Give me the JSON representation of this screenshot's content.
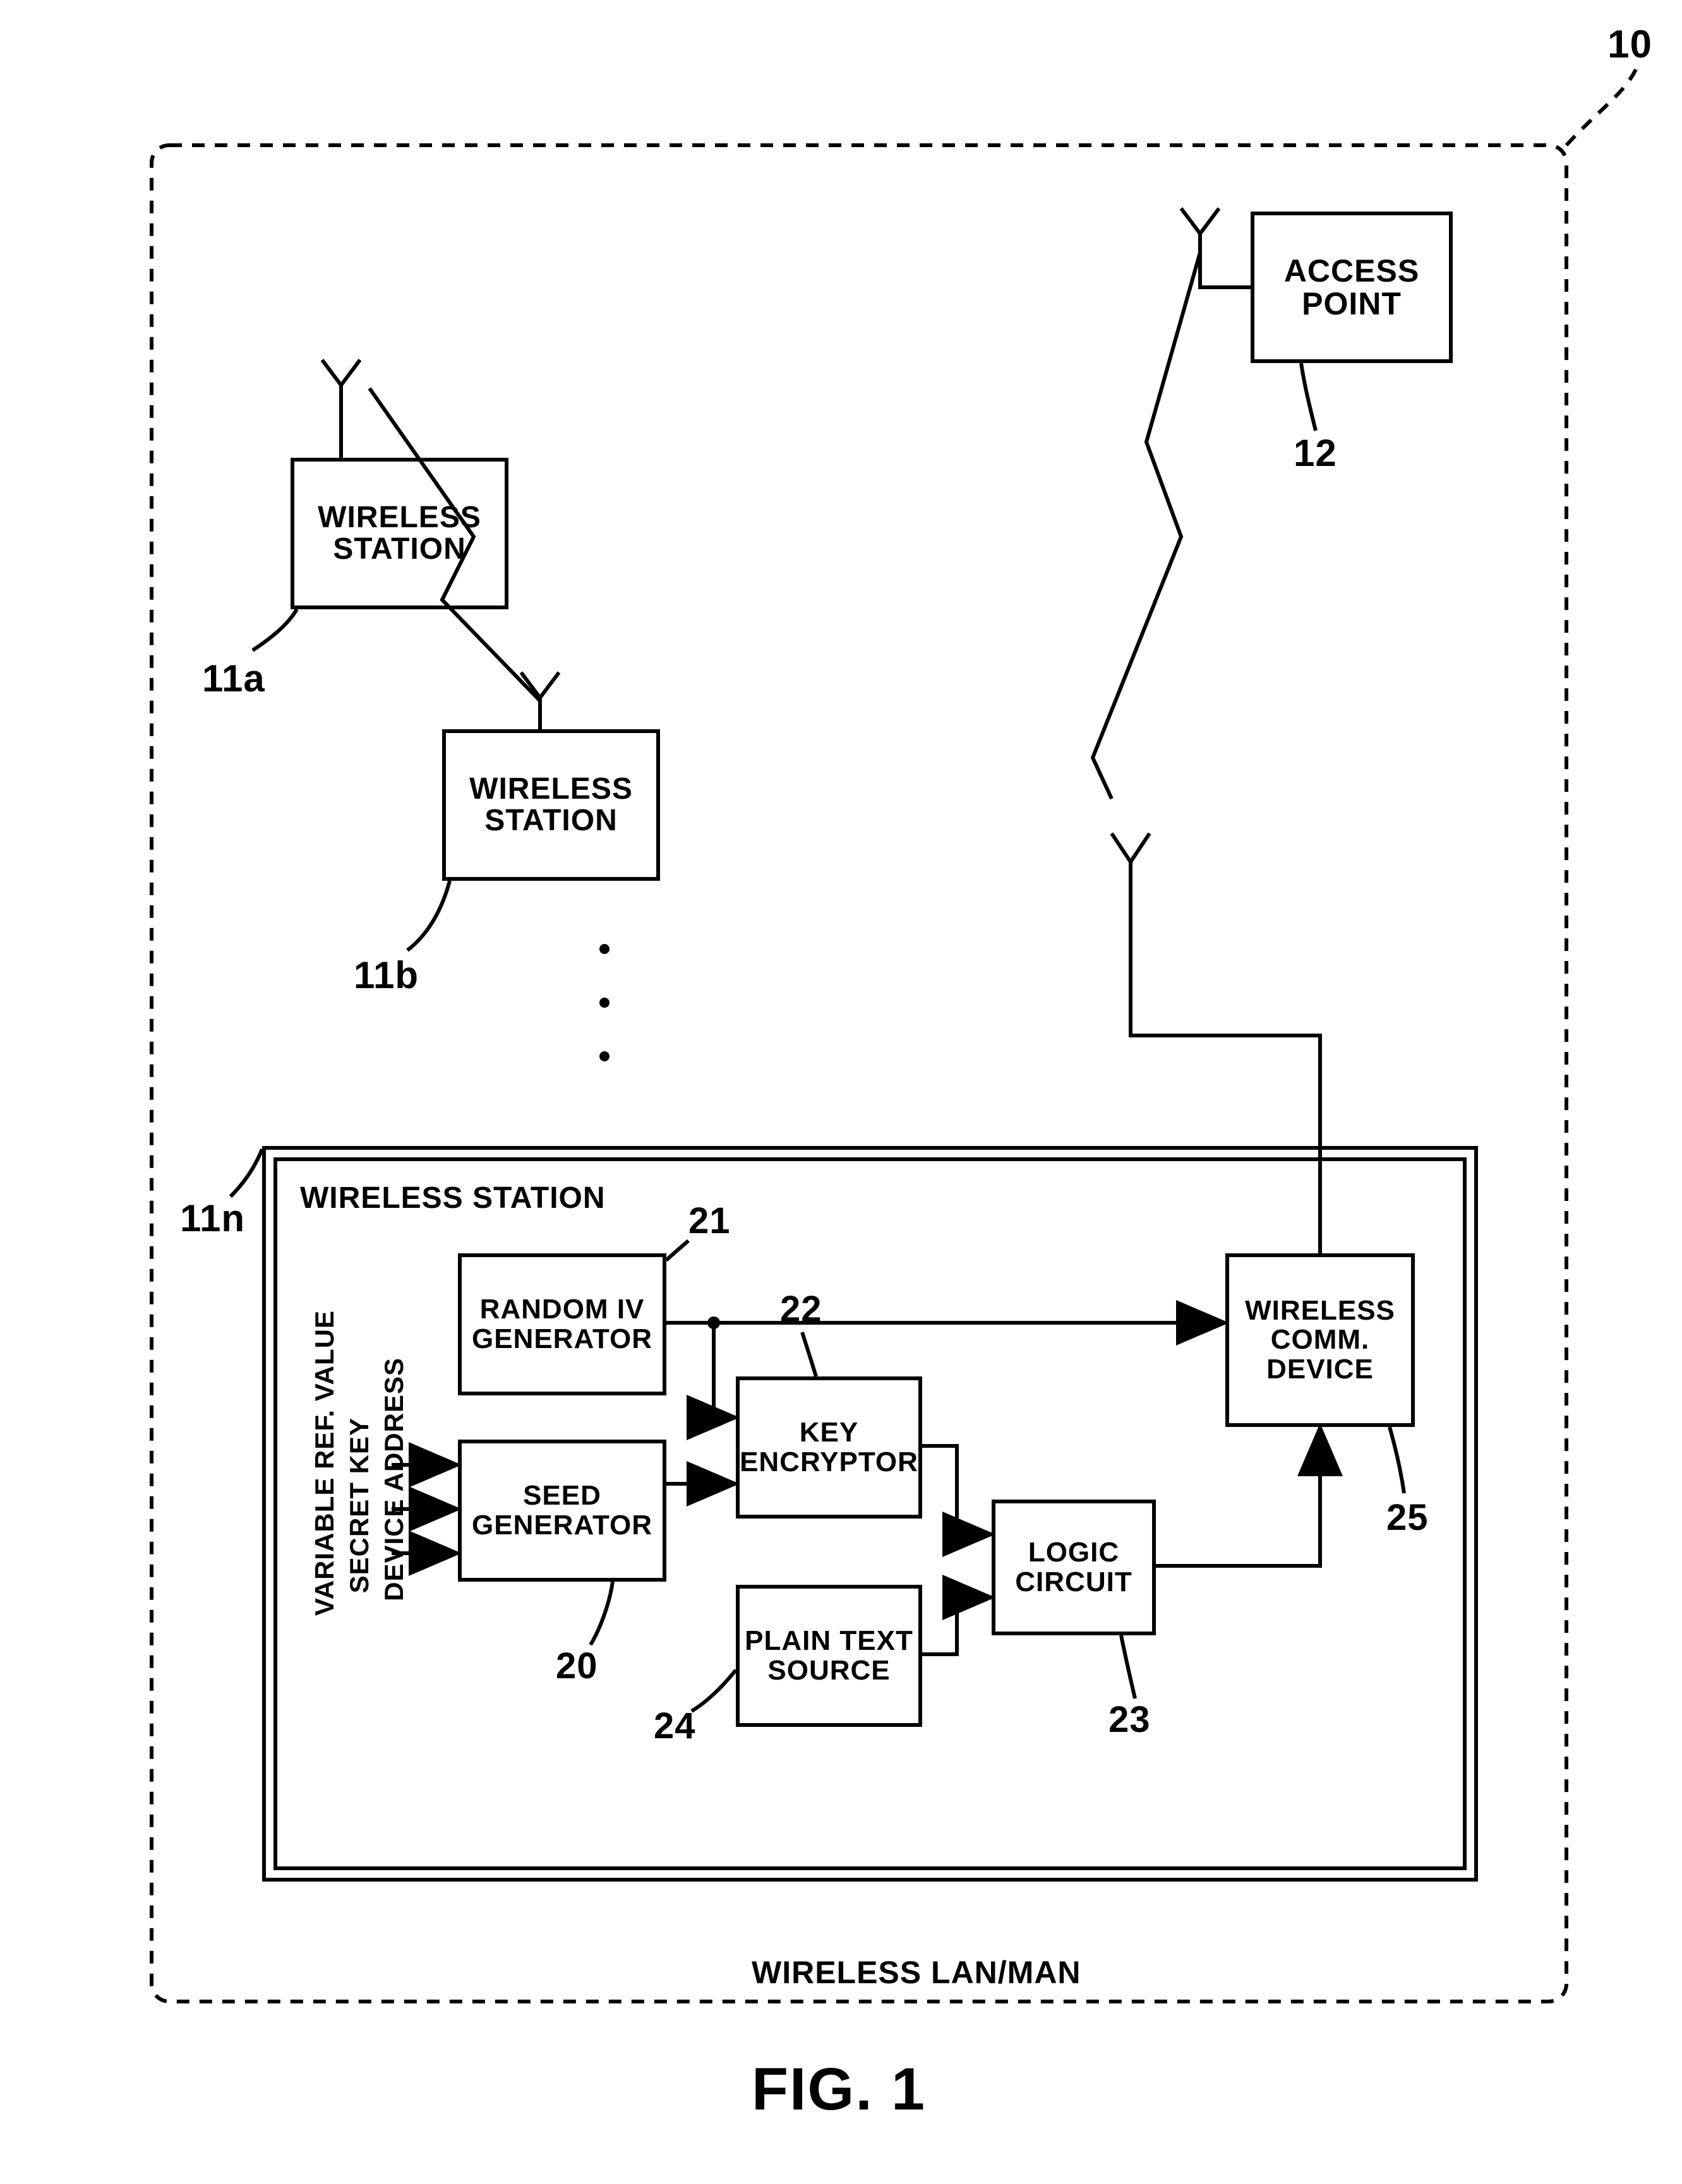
{
  "figure_label": "FIG. 1",
  "system_label": "10",
  "system_caption": "WIRELESS LAN/MAN",
  "access_point": {
    "label": "ACCESS\nPOINT",
    "ref": "12"
  },
  "station_a": {
    "label": "WIRELESS\nSTATION",
    "ref": "11a"
  },
  "station_b": {
    "label": "WIRELESS\nSTATION",
    "ref": "11b"
  },
  "station_n": {
    "title": "WIRELESS STATION",
    "ref": "11n"
  },
  "blocks": {
    "seed_gen": {
      "label": "SEED\nGENERATOR",
      "ref": "20"
    },
    "random_iv": {
      "label": "RANDOM IV\nGENERATOR",
      "ref": "21"
    },
    "key_enc": {
      "label": "KEY\nENCRYPTOR",
      "ref": "22"
    },
    "logic": {
      "label": "LOGIC\nCIRCUIT",
      "ref": "23"
    },
    "plain_text": {
      "label": "PLAIN TEXT\nSOURCE",
      "ref": "24"
    },
    "wireless": {
      "label": "WIRELESS\nCOMM.\nDEVICE",
      "ref": "25"
    }
  },
  "inputs": {
    "a": "VARIABLE REF. VALUE",
    "b": "SECRET KEY",
    "c": "DEVICE ADDRESS"
  },
  "style": {
    "bg": "#ffffff",
    "stroke": "#000000",
    "stroke_width": 6,
    "font_family": "Arial Narrow",
    "dashed": "18 14"
  }
}
